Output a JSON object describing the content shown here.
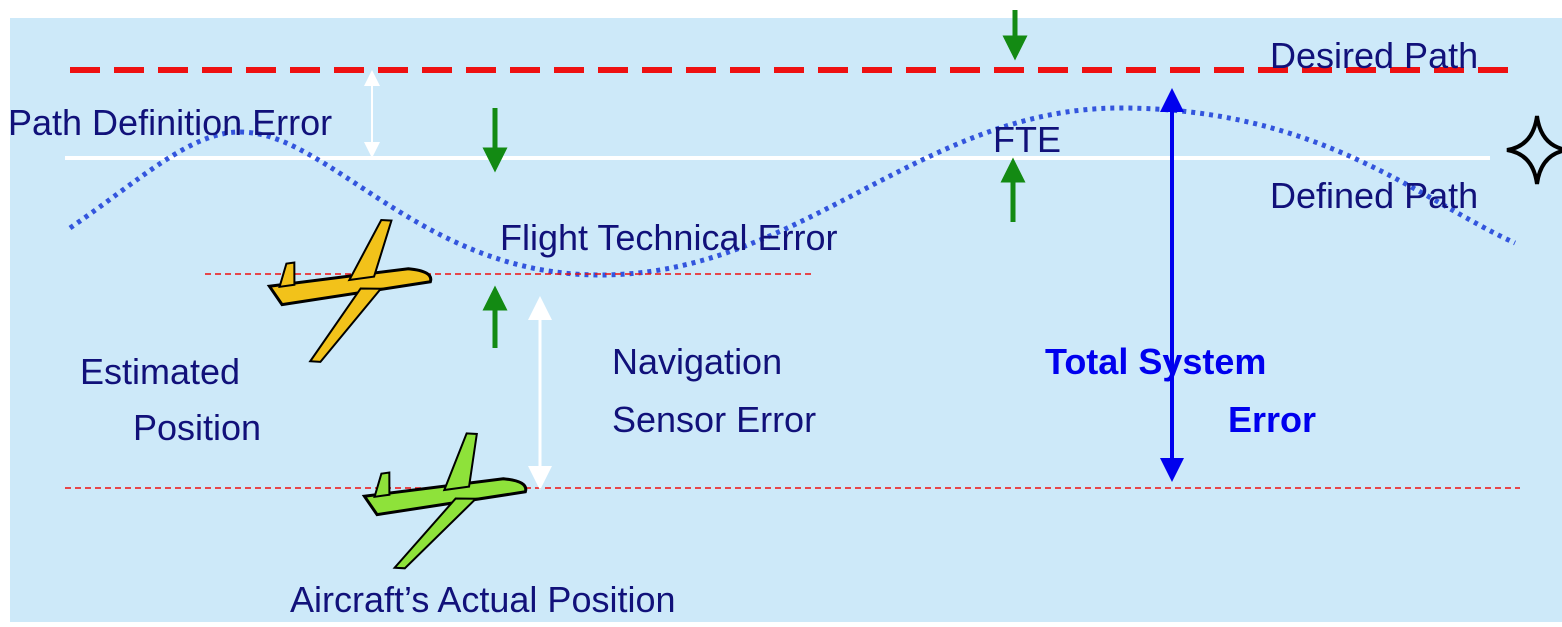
{
  "labels": {
    "desired_path": "Desired Path",
    "defined_path": "Defined Path",
    "path_definition_error": "Path Definition Error",
    "flight_technical_error": "Flight Technical Error",
    "fte": "FTE",
    "estimated_position": [
      "Estimated",
      "Position"
    ],
    "navigation_sensor_error": [
      "Navigation",
      "Sensor Error"
    ],
    "total_system_error": [
      "Total System",
      "Error"
    ],
    "actual_position": "Aircraft’s Actual Position"
  }
}
